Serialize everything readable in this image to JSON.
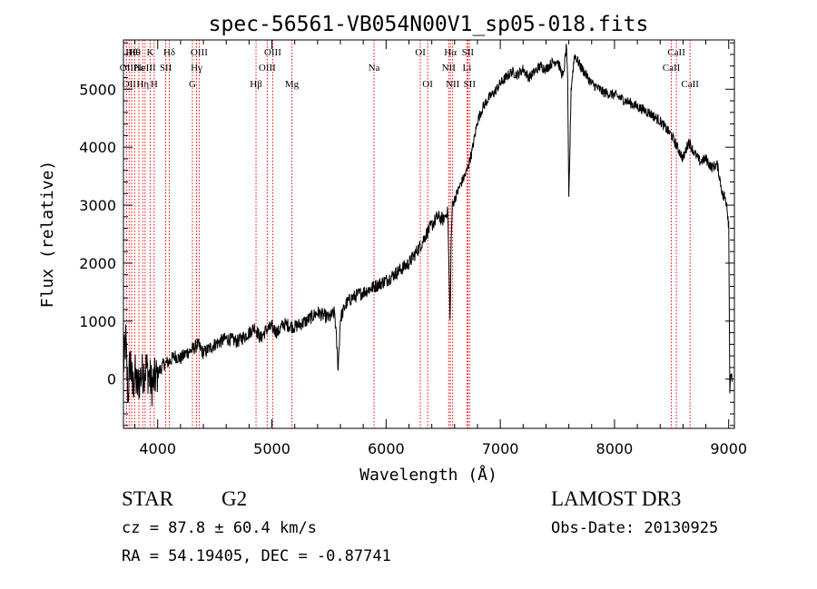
{
  "chart_data": {
    "type": "line",
    "title": "spec-56561-VB054N00V1_sp05-018.fits",
    "xlabel": "Wavelength (Å)",
    "ylabel": "Flux (relative)",
    "xlim": [
      3700,
      9050
    ],
    "ylim": [
      -850,
      5850
    ],
    "x_ticks": [
      4000,
      5000,
      6000,
      7000,
      8000,
      9000
    ],
    "y_ticks": [
      0,
      1000,
      2000,
      3000,
      4000,
      5000
    ],
    "grid": false,
    "series": [
      {
        "name": "flux",
        "x": [
          3700,
          3720,
          3740,
          3760,
          3780,
          3800,
          3820,
          3850,
          3900,
          3950,
          4000,
          4050,
          4100,
          4150,
          4200,
          4250,
          4300,
          4350,
          4400,
          4500,
          4600,
          4700,
          4800,
          4850,
          4900,
          4950,
          5000,
          5050,
          5100,
          5200,
          5300,
          5400,
          5500,
          5550,
          5580,
          5600,
          5650,
          5700,
          5800,
          5900,
          6000,
          6100,
          6200,
          6300,
          6350,
          6400,
          6450,
          6500,
          6540,
          6560,
          6570,
          6580,
          6600,
          6650,
          6700,
          6750,
          6800,
          6850,
          6900,
          6950,
          7000,
          7050,
          7100,
          7150,
          7200,
          7250,
          7300,
          7350,
          7400,
          7450,
          7500,
          7550,
          7580,
          7590,
          7600,
          7610,
          7620,
          7650,
          7700,
          7750,
          7800,
          7900,
          8000,
          8100,
          8200,
          8300,
          8400,
          8500,
          8550,
          8600,
          8650,
          8700,
          8750,
          8800,
          8850,
          8900,
          8950,
          8980,
          9000,
          9010,
          9020,
          9030
        ],
        "y": [
          200,
          650,
          -300,
          400,
          -200,
          100,
          -150,
          50,
          200,
          -100,
          100,
          250,
          300,
          400,
          350,
          450,
          500,
          600,
          450,
          600,
          700,
          650,
          800,
          900,
          700,
          850,
          900,
          800,
          950,
          900,
          1000,
          1150,
          1050,
          1150,
          200,
          1050,
          1300,
          1400,
          1500,
          1600,
          1700,
          1850,
          2000,
          2300,
          2500,
          2650,
          2800,
          2750,
          2900,
          1000,
          2400,
          3000,
          3100,
          3350,
          3550,
          3900,
          4450,
          4700,
          4850,
          4950,
          5100,
          5200,
          5300,
          5250,
          5350,
          5200,
          5300,
          5400,
          5350,
          5450,
          5500,
          5200,
          5750,
          5100,
          3100,
          4000,
          5000,
          5600,
          5400,
          5250,
          5100,
          4950,
          4900,
          4800,
          4700,
          4600,
          4450,
          4200,
          4000,
          3800,
          4100,
          3900,
          3750,
          3800,
          3650,
          3700,
          3150,
          3100,
          2700,
          -100,
          150,
          -50
        ],
        "color": "#000000"
      }
    ],
    "lines": [
      {
        "wavelength": 3727,
        "label": "OII",
        "row": 2
      },
      {
        "wavelength": 3750,
        "label": "OII",
        "row": 3
      },
      {
        "wavelength": 3771,
        "label": "Hθ",
        "row": 1
      },
      {
        "wavelength": 3798,
        "label": "Hθ",
        "row": 1
      },
      {
        "wavelength": 3835,
        "label": "Hε",
        "row": 2
      },
      {
        "wavelength": 3869,
        "label": "Hη",
        "row": 3
      },
      {
        "wavelength": 3889,
        "label": "NeIII",
        "row": 2
      },
      {
        "wavelength": 3934,
        "label": "K",
        "row": 1
      },
      {
        "wavelength": 3969,
        "label": "H",
        "row": 3
      },
      {
        "wavelength": 4070,
        "label": "SII",
        "row": 2
      },
      {
        "wavelength": 4102,
        "label": "Hδ",
        "row": 1
      },
      {
        "wavelength": 4304,
        "label": "G",
        "row": 3
      },
      {
        "wavelength": 4340,
        "label": "Hγ",
        "row": 2
      },
      {
        "wavelength": 4363,
        "label": "OIII",
        "row": 1
      },
      {
        "wavelength": 4861,
        "label": "Hβ",
        "row": 3
      },
      {
        "wavelength": 4959,
        "label": "OIII",
        "row": 2
      },
      {
        "wavelength": 5007,
        "label": "OIII",
        "row": 1
      },
      {
        "wavelength": 5175,
        "label": "Mg",
        "row": 3
      },
      {
        "wavelength": 5894,
        "label": "Na",
        "row": 2
      },
      {
        "wavelength": 6300,
        "label": "OI",
        "row": 1
      },
      {
        "wavelength": 6364,
        "label": "OI",
        "row": 3
      },
      {
        "wavelength": 6548,
        "label": "NII",
        "row": 2
      },
      {
        "wavelength": 6563,
        "label": "Hα",
        "row": 1
      },
      {
        "wavelength": 6583,
        "label": "NII",
        "row": 3
      },
      {
        "wavelength": 6708,
        "label": "Li",
        "row": 2
      },
      {
        "wavelength": 6716,
        "label": "SII",
        "row": 1
      },
      {
        "wavelength": 6731,
        "label": "SII",
        "row": 3
      },
      {
        "wavelength": 8498,
        "label": "CaII",
        "row": 2
      },
      {
        "wavelength": 8542,
        "label": "CaII",
        "row": 1
      },
      {
        "wavelength": 8662,
        "label": "CaII",
        "row": 3
      }
    ],
    "line_color": "#ff0000"
  },
  "info": {
    "class": "STAR",
    "subclass": "G2",
    "survey": "LAMOST DR3",
    "cz": "cz = 87.8 ± 60.4 km/s",
    "obs_date": "Obs-Date: 20130925",
    "radec": "RA =  54.19405, DEC =  -0.87741"
  }
}
